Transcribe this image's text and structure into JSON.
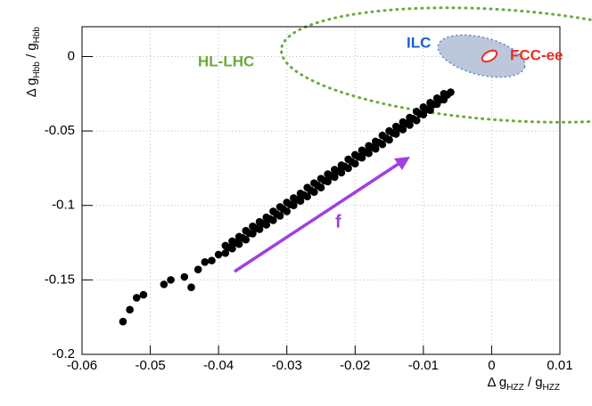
{
  "chart_data": {
    "type": "scatter",
    "xlabel_parts": [
      "Δ g",
      "HZZ",
      " / g",
      "HZZ"
    ],
    "ylabel_parts": [
      "Δ g",
      "Hbb",
      " / g",
      "Hbb"
    ],
    "xlim": [
      -0.06,
      0.01
    ],
    "xticks": [
      -0.06,
      -0.05,
      -0.04,
      -0.03,
      -0.02,
      -0.01,
      0,
      0.01
    ],
    "ylim": [
      -0.2,
      0.02
    ],
    "yticks": [
      -0.2,
      -0.15,
      -0.1,
      -0.05,
      0
    ],
    "grid": true,
    "annotations": [
      "HL-LHC",
      "ILC",
      "FCC-ee",
      "f"
    ],
    "series": [
      {
        "color": "#000000",
        "x": [
          -0.054,
          -0.053,
          -0.052,
          -0.051,
          -0.048,
          -0.047,
          -0.045,
          -0.044,
          -0.043,
          -0.042,
          -0.041,
          -0.04,
          -0.039,
          -0.039,
          -0.038,
          -0.038,
          -0.037,
          -0.037,
          -0.036,
          -0.036,
          -0.035,
          -0.035,
          -0.034,
          -0.034,
          -0.033,
          -0.033,
          -0.032,
          -0.032,
          -0.031,
          -0.031,
          -0.03,
          -0.03,
          -0.029,
          -0.029,
          -0.028,
          -0.028,
          -0.027,
          -0.027,
          -0.026,
          -0.026,
          -0.025,
          -0.025,
          -0.024,
          -0.024,
          -0.023,
          -0.023,
          -0.022,
          -0.022,
          -0.021,
          -0.021,
          -0.02,
          -0.02,
          -0.019,
          -0.019,
          -0.018,
          -0.018,
          -0.017,
          -0.017,
          -0.016,
          -0.016,
          -0.015,
          -0.015,
          -0.014,
          -0.014,
          -0.013,
          -0.013,
          -0.012,
          -0.012,
          -0.011,
          -0.011,
          -0.01,
          -0.01,
          -0.009,
          -0.009,
          -0.008,
          -0.008,
          -0.007,
          -0.007,
          -0.006,
          -0.0385,
          -0.0375,
          -0.0365,
          -0.0355,
          -0.0345,
          -0.0335,
          -0.0325,
          -0.0315,
          -0.0305,
          -0.0295,
          -0.0285,
          -0.0275,
          -0.0265,
          -0.0255,
          -0.0245,
          -0.0235,
          -0.0225,
          -0.0215,
          -0.0205,
          -0.0195,
          -0.0185,
          -0.0175,
          -0.0165,
          -0.0155,
          -0.0145,
          -0.0135,
          -0.0125,
          -0.0115,
          -0.0105,
          -0.0095,
          -0.0085,
          -0.0075,
          -0.0065
        ],
        "values": [
          -0.178,
          -0.17,
          -0.162,
          -0.16,
          -0.153,
          -0.15,
          -0.148,
          -0.155,
          -0.143,
          -0.138,
          -0.137,
          -0.133,
          -0.127,
          -0.132,
          -0.124,
          -0.129,
          -0.121,
          -0.126,
          -0.117,
          -0.123,
          -0.114,
          -0.119,
          -0.111,
          -0.116,
          -0.108,
          -0.113,
          -0.104,
          -0.11,
          -0.101,
          -0.107,
          -0.098,
          -0.104,
          -0.095,
          -0.1,
          -0.092,
          -0.097,
          -0.088,
          -0.094,
          -0.085,
          -0.091,
          -0.082,
          -0.088,
          -0.079,
          -0.084,
          -0.076,
          -0.081,
          -0.073,
          -0.078,
          -0.069,
          -0.075,
          -0.066,
          -0.072,
          -0.063,
          -0.068,
          -0.06,
          -0.065,
          -0.057,
          -0.062,
          -0.053,
          -0.059,
          -0.05,
          -0.056,
          -0.047,
          -0.052,
          -0.044,
          -0.049,
          -0.041,
          -0.046,
          -0.037,
          -0.043,
          -0.034,
          -0.039,
          -0.031,
          -0.036,
          -0.028,
          -0.032,
          -0.025,
          -0.029,
          -0.024,
          -0.1282,
          -0.125,
          -0.1218,
          -0.1186,
          -0.1154,
          -0.1122,
          -0.109,
          -0.1058,
          -0.1026,
          -0.0994,
          -0.0962,
          -0.093,
          -0.0898,
          -0.0866,
          -0.0834,
          -0.0802,
          -0.077,
          -0.0738,
          -0.0706,
          -0.0674,
          -0.0642,
          -0.061,
          -0.0578,
          -0.0546,
          -0.0514,
          -0.0482,
          -0.045,
          -0.0418,
          -0.0386,
          -0.0354,
          -0.0322,
          -0.029,
          -0.0258
        ]
      }
    ]
  }
}
